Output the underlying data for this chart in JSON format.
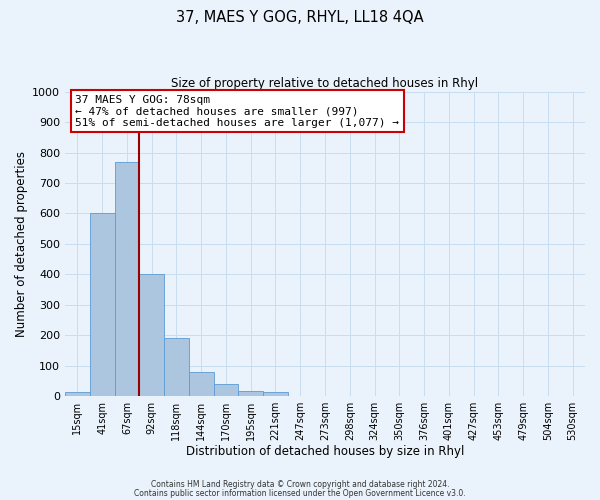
{
  "title": "37, MAES Y GOG, RHYL, LL18 4QA",
  "subtitle": "Size of property relative to detached houses in Rhyl",
  "xlabel": "Distribution of detached houses by size in Rhyl",
  "ylabel": "Number of detached properties",
  "bar_labels": [
    "15sqm",
    "41sqm",
    "67sqm",
    "92sqm",
    "118sqm",
    "144sqm",
    "170sqm",
    "195sqm",
    "221sqm",
    "247sqm",
    "273sqm",
    "298sqm",
    "324sqm",
    "350sqm",
    "376sqm",
    "401sqm",
    "427sqm",
    "453sqm",
    "479sqm",
    "504sqm",
    "530sqm"
  ],
  "bar_values": [
    15,
    600,
    770,
    400,
    190,
    78,
    40,
    18,
    13,
    0,
    0,
    0,
    0,
    0,
    0,
    0,
    0,
    0,
    0,
    0,
    0
  ],
  "bar_color": "#adc6e0",
  "bar_edge_color": "#5b9bd5",
  "background_color": "#eaf3fb",
  "grid_color": "#c8ddf0",
  "red_line_x": 2.5,
  "annotation_text_line1": "37 MAES Y GOG: 78sqm",
  "annotation_text_line2": "← 47% of detached houses are smaller (997)",
  "annotation_text_line3": "51% of semi-detached houses are larger (1,077) →",
  "annotation_box_color": "#ffffff",
  "annotation_box_edge": "#cc0000",
  "red_line_color": "#990000",
  "ylim": [
    0,
    1000
  ],
  "yticks": [
    0,
    100,
    200,
    300,
    400,
    500,
    600,
    700,
    800,
    900,
    1000
  ],
  "footer1": "Contains HM Land Registry data © Crown copyright and database right 2024.",
  "footer2": "Contains public sector information licensed under the Open Government Licence v3.0."
}
